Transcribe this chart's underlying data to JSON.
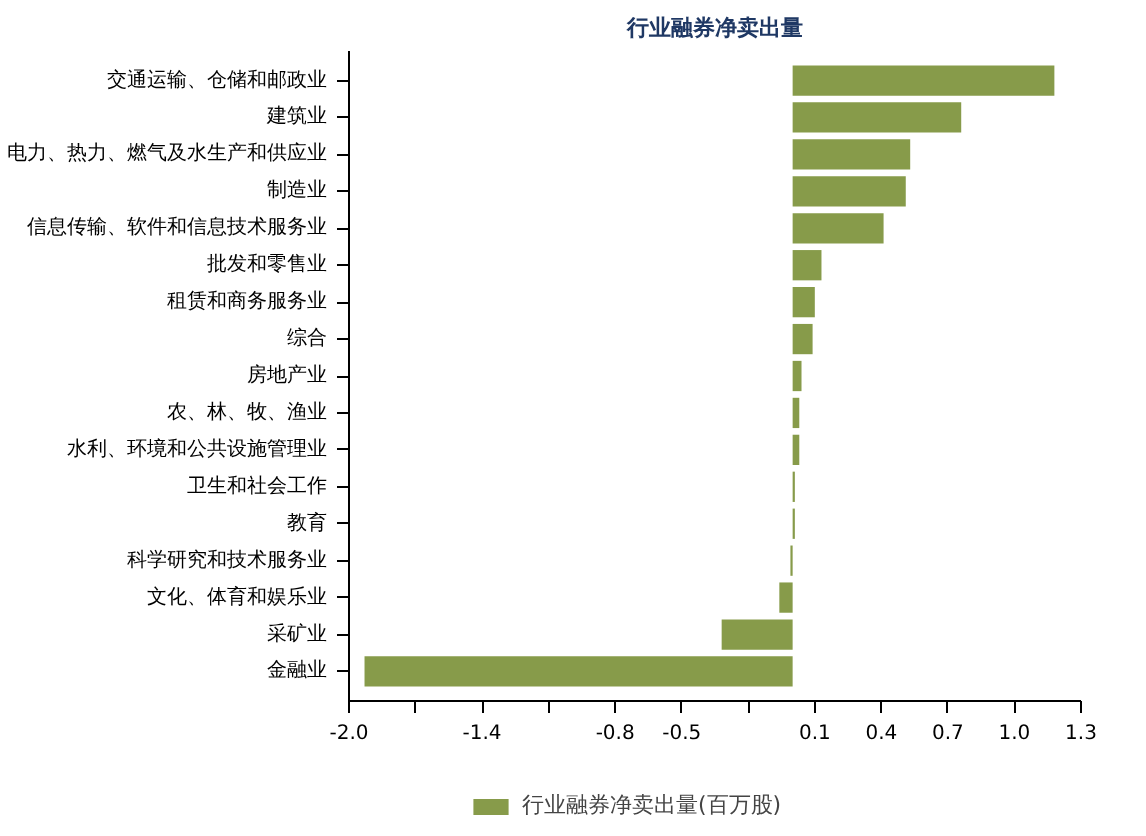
{
  "chart_data": {
    "type": "bar",
    "orientation": "horizontal",
    "title": "行业融券净卖出量",
    "categories": [
      "交通运输、仓储和邮政业",
      "建筑业",
      "电力、热力、燃气及水生产和供应业",
      "制造业",
      "信息传输、软件和信息技术服务业",
      "批发和零售业",
      "租赁和商务服务业",
      "综合",
      "房地产业",
      "农、林、牧、渔业",
      "水利、环境和公共设施管理业",
      "卫生和社会工作",
      "教育",
      "科学研究和技术服务业",
      "文化、体育和娱乐业",
      "采矿业",
      "金融业"
    ],
    "series": [
      {
        "name": "行业融券净卖出量(百万股)",
        "color": "#879b4a",
        "values": [
          1.18,
          0.76,
          0.53,
          0.51,
          0.41,
          0.13,
          0.1,
          0.09,
          0.04,
          0.03,
          0.03,
          0.01,
          0.01,
          -0.01,
          -0.06,
          -0.32,
          -1.93
        ]
      }
    ],
    "xlim": [
      -2.0,
      1.3
    ],
    "xticks": [
      {
        "value": -2.0,
        "label": "-2.0"
      },
      {
        "value": -1.7,
        "label": null
      },
      -1.4,
      {
        "value": -1.1,
        "label": null
      },
      -0.8,
      -0.5,
      {
        "value": -0.2,
        "label": null
      },
      0.1,
      0.4,
      0.7,
      {
        "value": 1.0,
        "label": "1.0"
      },
      1.3
    ],
    "grid": false,
    "legend": "bottom"
  }
}
